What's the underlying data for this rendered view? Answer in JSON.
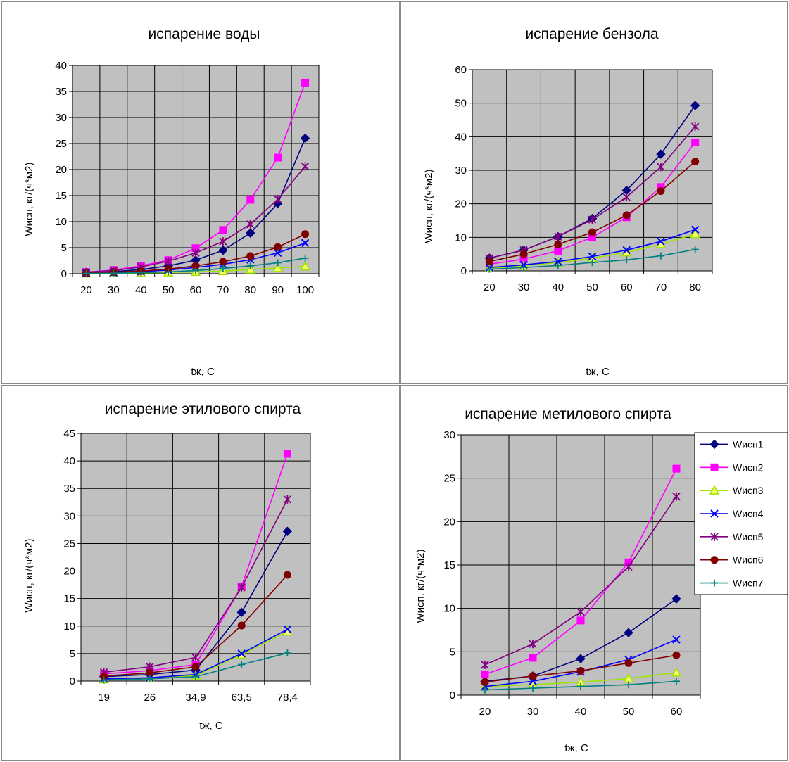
{
  "chart_data": [
    {
      "type": "line",
      "title": "испарение воды",
      "xlabel": "tж, С",
      "ylabel": "Wисп, кг/(ч*м2)",
      "categories": [
        "20",
        "30",
        "40",
        "50",
        "60",
        "70",
        "80",
        "90",
        "100"
      ],
      "ylim": [
        0,
        40
      ],
      "yticks": [
        0,
        5,
        10,
        15,
        20,
        25,
        30,
        35,
        40
      ],
      "grid": true,
      "series": [
        {
          "name": "Wисп1",
          "values": [
            0.2,
            0.4,
            0.8,
            1.5,
            2.6,
            4.5,
            7.8,
            13.5,
            26
          ]
        },
        {
          "name": "Wисп2",
          "values": [
            0.3,
            0.7,
            1.5,
            2.6,
            4.9,
            8.4,
            14.2,
            22.3,
            36.7
          ]
        },
        {
          "name": "Wисп3",
          "values": [
            0.05,
            0.1,
            0.15,
            0.25,
            0.35,
            0.5,
            0.8,
            1.1,
            1.4
          ]
        },
        {
          "name": "Wисп4",
          "values": [
            0.1,
            0.2,
            0.4,
            0.7,
            1.2,
            1.8,
            2.7,
            4.0,
            5.9
          ]
        },
        {
          "name": "Wисп5",
          "values": [
            0.3,
            0.6,
            1.3,
            2.4,
            4.0,
            6.2,
            9.5,
            14.3,
            20.6
          ]
        },
        {
          "name": "Wисп6",
          "values": [
            0.1,
            0.3,
            0.5,
            0.9,
            1.5,
            2.3,
            3.4,
            5.1,
            7.6
          ]
        },
        {
          "name": "Wисп7",
          "values": [
            0.05,
            0.1,
            0.2,
            0.35,
            0.6,
            1.0,
            1.5,
            2.1,
            3.0
          ]
        }
      ]
    },
    {
      "type": "line",
      "title": "испарение бензола",
      "xlabel": "tж, С",
      "ylabel": "Wисп, кг/(ч*м2)",
      "categories": [
        "20",
        "30",
        "40",
        "50",
        "60",
        "70",
        "80"
      ],
      "ylim": [
        0,
        60
      ],
      "yticks": [
        0,
        10,
        20,
        30,
        40,
        50,
        60
      ],
      "grid": true,
      "series": [
        {
          "name": "Wисп1",
          "values": [
            3.8,
            6.2,
            10.2,
            15.6,
            24,
            34.8,
            49.3
          ]
        },
        {
          "name": "Wисп2",
          "values": [
            2.0,
            3.5,
            6.0,
            10,
            16,
            25,
            38.3
          ]
        },
        {
          "name": "Wисп3",
          "values": [
            0.8,
            1.5,
            2.5,
            3.8,
            5.5,
            8.0,
            11
          ]
        },
        {
          "name": "Wисп4",
          "values": [
            1.0,
            1.8,
            2.8,
            4.3,
            6.2,
            8.8,
            12.3
          ]
        },
        {
          "name": "Wисп5",
          "values": [
            3.8,
            6.2,
            10.2,
            15.3,
            22,
            31,
            43
          ]
        },
        {
          "name": "Wисп6",
          "values": [
            2.8,
            5.0,
            7.9,
            11.5,
            16.6,
            23.8,
            32.6
          ]
        },
        {
          "name": "Wисп7",
          "values": [
            0.5,
            1.0,
            1.6,
            2.5,
            3.3,
            4.5,
            6.4
          ]
        }
      ]
    },
    {
      "type": "line",
      "title": "испарение этилового спирта",
      "xlabel": "tж, С",
      "ylabel": "Wисп, кг/(ч*м2)",
      "categories": [
        "19",
        "26",
        "34,9",
        "63,5",
        "78,4"
      ],
      "ylim": [
        0,
        45
      ],
      "yticks": [
        0,
        5,
        10,
        15,
        20,
        25,
        30,
        35,
        40,
        45
      ],
      "grid": true,
      "series": [
        {
          "name": "Wисп1",
          "values": [
            0.8,
            1.2,
            2.0,
            12.5,
            27.2
          ]
        },
        {
          "name": "Wисп2",
          "values": [
            1.3,
            1.9,
            3.0,
            17.2,
            41.3
          ]
        },
        {
          "name": "Wисп3",
          "values": [
            0.3,
            0.5,
            1.0,
            4.8,
            9.0
          ]
        },
        {
          "name": "Wисп4",
          "values": [
            0.4,
            0.6,
            1.2,
            5.0,
            9.4
          ]
        },
        {
          "name": "Wисп5",
          "values": [
            1.6,
            2.6,
            4.3,
            17.0,
            33.0
          ]
        },
        {
          "name": "Wисп6",
          "values": [
            0.9,
            1.5,
            2.6,
            10.1,
            19.3
          ]
        },
        {
          "name": "Wисп7",
          "values": [
            0.2,
            0.4,
            0.8,
            3.0,
            5.1
          ]
        }
      ]
    },
    {
      "type": "line",
      "title": "испарение метилового спирта",
      "xlabel": "tж, С",
      "ylabel": "Wисп, кг/(ч*м2)",
      "categories": [
        "20",
        "30",
        "40",
        "50",
        "60"
      ],
      "ylim": [
        0,
        30
      ],
      "yticks": [
        0,
        5,
        10,
        15,
        20,
        25,
        30
      ],
      "grid": true,
      "legend": "right",
      "series": [
        {
          "name": "Wисп1",
          "values": [
            1.6,
            2.2,
            4.2,
            7.2,
            11.1
          ]
        },
        {
          "name": "Wисп2",
          "values": [
            2.4,
            4.3,
            8.6,
            15.3,
            26.1
          ]
        },
        {
          "name": "Wисп3",
          "values": [
            1.0,
            1.2,
            1.5,
            1.9,
            2.6
          ]
        },
        {
          "name": "Wисп4",
          "values": [
            1.0,
            1.6,
            2.7,
            4.1,
            6.4
          ]
        },
        {
          "name": "Wисп5",
          "values": [
            3.5,
            5.9,
            9.6,
            14.8,
            22.9
          ]
        },
        {
          "name": "Wисп6",
          "values": [
            1.5,
            2.2,
            2.8,
            3.7,
            4.6
          ]
        },
        {
          "name": "Wисп7",
          "values": [
            0.6,
            0.8,
            1.0,
            1.2,
            1.6
          ]
        }
      ]
    }
  ],
  "series_style": [
    {
      "color": "#000080",
      "marker": "diamond"
    },
    {
      "color": "#ff00ff",
      "marker": "square"
    },
    {
      "color": "#99e600",
      "marker": "triangle"
    },
    {
      "color": "#0000ff",
      "marker": "x"
    },
    {
      "color": "#800080",
      "marker": "star"
    },
    {
      "color": "#800000",
      "marker": "circle"
    },
    {
      "color": "#008080",
      "marker": "plus"
    }
  ]
}
